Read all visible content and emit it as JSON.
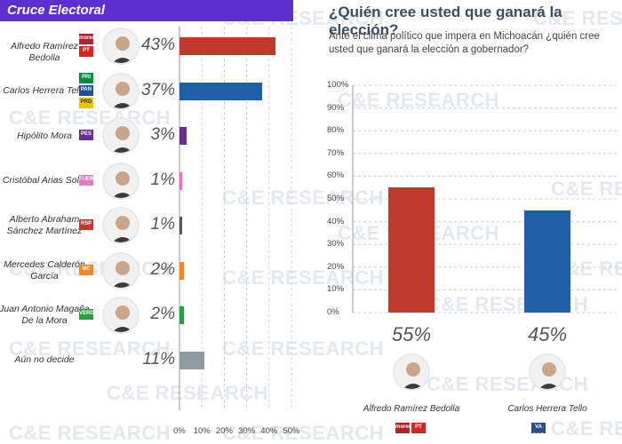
{
  "header": {
    "title": "Cruce Electoral",
    "accent": "#5b2fd0"
  },
  "watermark": "C&E RESEARCH",
  "chart_data": [
    {
      "type": "bar",
      "orientation": "horizontal",
      "title": "Cruce Electoral",
      "categories": [
        "Alfredo Ramírez Bedolla",
        "Carlos Herrera Tello",
        "Hipólito Mora",
        "Cristóbal Arias Solís",
        "Alberto Abraham Sánchez Martínez",
        "Mercedes Calderón García",
        "Juan Antonio Magaña De la Mora",
        "Aún no decide"
      ],
      "labels": [
        "Alfredo Ramírez Bedolla",
        "Carlos Herrera Tello",
        "Hipólito Mora",
        "Cristóbal Arias Solís",
        "Alberto Abraham\nSánchez Martínez",
        "Mercedes Calderón\nGarcía",
        "Juan Antonio Magaña\nDe la Mora",
        "Aún no decide"
      ],
      "values": [
        43,
        37,
        3,
        1,
        1,
        2,
        2,
        11
      ],
      "value_labels": [
        "43%",
        "37%",
        "3%",
        "1%",
        "1%",
        "2%",
        "2%",
        "11%"
      ],
      "colors": [
        "#c0392b",
        "#1f5fa8",
        "#6a2c91",
        "#e377c2",
        "#555555",
        "#f0882a",
        "#2e9e3e",
        "#8d9ba3"
      ],
      "parties": [
        [
          "morena",
          "PT"
        ],
        [
          "PRI",
          "PAN",
          "PRD"
        ],
        [
          "PES"
        ],
        [
          "FUERZA X MÉXICO"
        ],
        [
          "RSP"
        ],
        [
          "MC"
        ],
        [
          "VERDE"
        ],
        []
      ],
      "xlim": [
        0,
        50
      ],
      "xticks": [
        "0%",
        "10%",
        "20%",
        "30%",
        "40%",
        "50%"
      ],
      "grid": true
    },
    {
      "type": "bar",
      "orientation": "vertical",
      "title": "¿Quién cree usted que ganará la elección?",
      "subtitle": "Ante el clima político que impera en Michoacán ¿quién cree usted que ganará la elección a gobernador?",
      "categories": [
        "Alfredo Ramírez Bedolla",
        "Carlos Herrera Tello"
      ],
      "values": [
        55,
        45
      ],
      "value_labels": [
        "55%",
        "45%"
      ],
      "colors": [
        "#c0392b",
        "#1f5fa8"
      ],
      "parties": [
        [
          "morena",
          "PT"
        ],
        [
          "VA POR MÉXICO"
        ]
      ],
      "ylim": [
        0,
        100
      ],
      "yticks": [
        "100%",
        "90%",
        "80%",
        "70%",
        "60%",
        "50%",
        "40%",
        "30%",
        "20%",
        "10%",
        "0%"
      ],
      "grid": true
    }
  ]
}
